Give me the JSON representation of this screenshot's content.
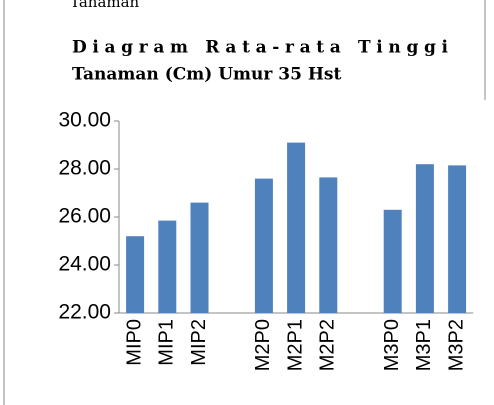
{
  "chart_data": {
    "type": "bar",
    "header": "Tanaman",
    "title": [
      "Diagram Rata-rata Tinggi",
      "Tanaman (Cm) Umur 35 Hst"
    ],
    "categories": [
      "MIP0",
      "MIP1",
      "MIP2",
      null,
      "M2P0",
      "M2P1",
      "M2P2",
      null,
      "M3P0",
      "M3P1",
      "M3P2"
    ],
    "values": [
      25.2,
      25.85,
      26.6,
      null,
      27.6,
      29.1,
      27.65,
      null,
      26.3,
      28.2,
      28.15
    ],
    "color": "#4f81bd",
    "ylim": [
      22,
      30
    ],
    "yticks": [
      {
        "value": 22,
        "label": "22.00"
      },
      {
        "value": 24,
        "label": "24.00"
      },
      {
        "value": 26,
        "label": "26.00"
      },
      {
        "value": 28,
        "label": "28.00"
      },
      {
        "value": 30,
        "label": "30.00"
      }
    ],
    "grid": false
  }
}
